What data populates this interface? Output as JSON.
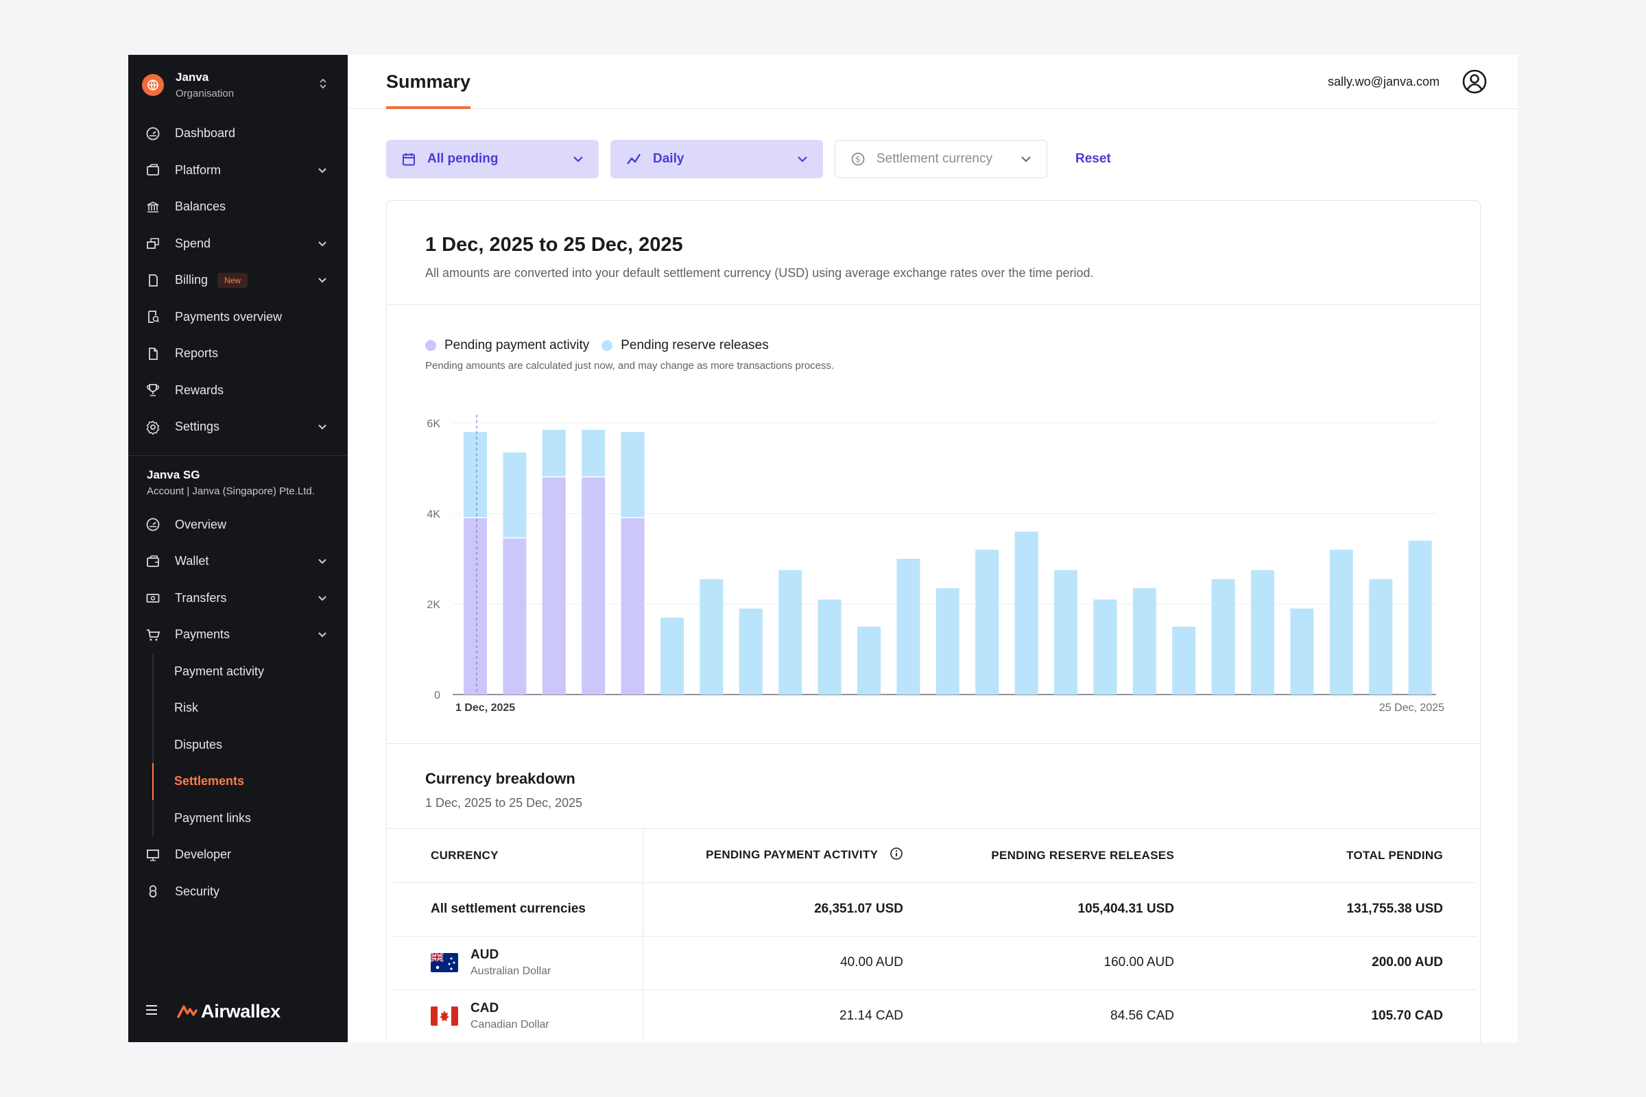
{
  "org": {
    "name": "Janva",
    "subtitle": "Organisation"
  },
  "nav": {
    "top_items": [
      {
        "label": "Dashboard"
      },
      {
        "label": "Platform"
      },
      {
        "label": "Balances"
      },
      {
        "label": "Spend"
      },
      {
        "label": "Billing",
        "badge": "New"
      },
      {
        "label": "Payments overview"
      },
      {
        "label": "Reports"
      },
      {
        "label": "Rewards"
      },
      {
        "label": "Settings"
      }
    ],
    "account": {
      "name": "Janva SG",
      "subtitle": "Account | Janva (Singapore) Pte.Ltd."
    },
    "account_items": [
      {
        "label": "Overview"
      },
      {
        "label": "Wallet"
      },
      {
        "label": "Transfers"
      },
      {
        "label": "Payments"
      }
    ],
    "payments_sub": [
      {
        "label": "Payment activity"
      },
      {
        "label": "Risk"
      },
      {
        "label": "Disputes"
      },
      {
        "label": "Settlements"
      },
      {
        "label": "Payment links"
      }
    ],
    "bottom_items": [
      {
        "label": "Developer"
      },
      {
        "label": "Security"
      }
    ],
    "brand": "Airwallex"
  },
  "header": {
    "tab": "Summary",
    "user_email": "sally.wo@janva.com"
  },
  "filters": {
    "status": "All pending",
    "interval": "Daily",
    "currency_placeholder": "Settlement currency",
    "reset": "Reset"
  },
  "summary": {
    "title": "1 Dec, 2025 to 25 Dec, 2025",
    "description": "All amounts are converted into your default settlement currency (USD) using average exchange rates over the time period."
  },
  "legend": {
    "note": "Pending amounts are calculated just now, and may change as more transactions process."
  },
  "colors": {
    "pending_payment": "#cbc7fb",
    "pending_reserve": "#b9e4fb",
    "accent": "#f06d3c",
    "link": "#4d3ad3"
  },
  "chart_data": {
    "type": "bar",
    "stacked": true,
    "y_ticks": [
      "6K",
      "4K",
      "2K",
      "0"
    ],
    "ylim": [
      0,
      6000
    ],
    "x_start_label": "1 Dec, 2025",
    "x_end_label": "25 Dec, 2025",
    "series": [
      {
        "name": "Pending payment activity",
        "values": [
          3900,
          3450,
          4800,
          4800,
          3900,
          0,
          0,
          0,
          0,
          0,
          0,
          0,
          0,
          0,
          0,
          0,
          0,
          0,
          0,
          0,
          0,
          0,
          0,
          0,
          0
        ]
      },
      {
        "name": "Pending reserve releases",
        "values": [
          1900,
          1900,
          1050,
          1050,
          1900,
          1700,
          2550,
          1900,
          2750,
          2100,
          1500,
          3000,
          2350,
          3200,
          3600,
          2750,
          2100,
          2350,
          1500,
          2550,
          2750,
          1900,
          3200,
          2550,
          3400
        ]
      }
    ]
  },
  "breakdown": {
    "title": "Currency breakdown",
    "subtitle": "1 Dec, 2025 to 25 Dec, 2025",
    "columns": [
      "CURRENCY",
      "PENDING PAYMENT ACTIVITY",
      "PENDING RESERVE RELEASES",
      "TOTAL PENDING"
    ],
    "total_row": {
      "label": "All settlement currencies",
      "activity": "26,351.07 USD",
      "reserve": "105,404.31 USD",
      "total": "131,755.38 USD"
    },
    "rows": [
      {
        "code": "AUD",
        "name": "Australian Dollar",
        "activity": "40.00 AUD",
        "reserve": "160.00 AUD",
        "total": "200.00 AUD"
      },
      {
        "code": "CAD",
        "name": "Canadian Dollar",
        "activity": "21.14 CAD",
        "reserve": "84.56 CAD",
        "total": "105.70 CAD"
      }
    ]
  }
}
